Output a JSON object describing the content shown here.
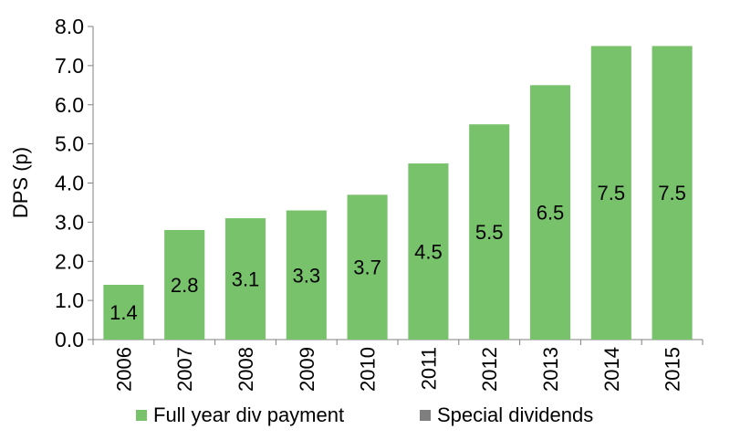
{
  "chart_data": {
    "type": "bar",
    "categories": [
      "2006",
      "2007",
      "2008",
      "2009",
      "2010",
      "2011",
      "2012",
      "2013",
      "2014",
      "2015"
    ],
    "series": [
      {
        "name": "Full year div payment",
        "color": "#77c26a",
        "values": [
          1.4,
          2.8,
          3.1,
          3.3,
          3.7,
          4.5,
          5.5,
          6.5,
          7.5,
          7.5
        ],
        "labels": [
          "1.4",
          "2.8",
          "3.1",
          "3.3",
          "3.7",
          "4.5",
          "5.5",
          "6.5",
          "7.5",
          "7.5"
        ]
      },
      {
        "name": "Special dividends",
        "color": "#7f7f7f",
        "values": [
          0,
          0,
          0,
          0,
          0,
          0,
          0,
          0,
          0,
          0
        ]
      }
    ],
    "ylabel": "DPS (p)",
    "xlabel": "",
    "ylim": [
      0,
      8
    ],
    "yticks": [
      "0.0",
      "1.0",
      "2.0",
      "3.0",
      "4.0",
      "5.0",
      "6.0",
      "7.0",
      "8.0"
    ],
    "x_tick_rotation": "vertical",
    "grid": false,
    "legend_position": "bottom"
  }
}
